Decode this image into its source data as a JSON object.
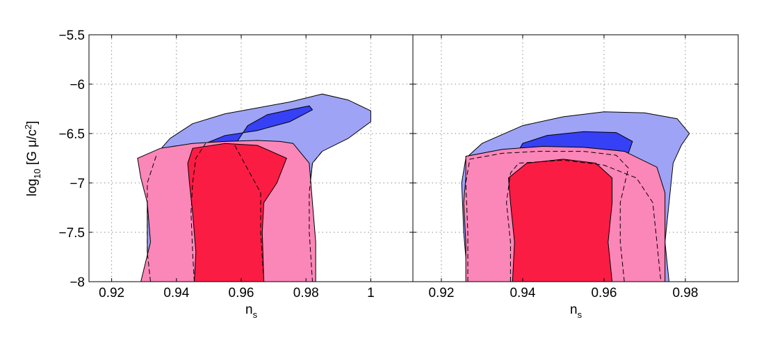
{
  "colors": {
    "blue_outer": "#9ea3f5",
    "blue_inner": "#3640f5",
    "pink_outer": "#fb86b8",
    "red_inner": "#fb1c44",
    "grid": "#8a8a8a"
  },
  "chart_data": [
    {
      "type": "contour",
      "panel": "left",
      "xlabel": "n_s",
      "ylabel": "log10[G μ/c²]",
      "xlim": [
        0.913,
        1.013
      ],
      "ylim": [
        -8,
        -5.5
      ],
      "xticks": [
        0.92,
        0.94,
        0.96,
        0.98,
        1
      ],
      "x_tick_labels": [
        "0.92",
        "0.94",
        "0.96",
        "0.98",
        "1"
      ],
      "yticks": [
        -8,
        -7.5,
        -7,
        -6.5,
        -6,
        -5.5
      ],
      "y_tick_labels": [
        "−8",
        "−7.5",
        "−7",
        "−6.5",
        "−6",
        "−5.5"
      ],
      "grid": true,
      "regions": [
        {
          "level": "outer",
          "color": "blue_outer",
          "points": [
            [
              0.932,
              -8
            ],
            [
              0.931,
              -7.7
            ],
            [
              0.931,
              -7.3
            ],
            [
              0.931,
              -7.0
            ],
            [
              0.934,
              -6.7
            ],
            [
              0.938,
              -6.55
            ],
            [
              0.945,
              -6.4
            ],
            [
              0.955,
              -6.3
            ],
            [
              0.965,
              -6.24
            ],
            [
              0.975,
              -6.18
            ],
            [
              0.985,
              -6.1
            ],
            [
              0.993,
              -6.16
            ],
            [
              1.0,
              -6.27
            ],
            [
              1.0,
              -6.38
            ],
            [
              0.993,
              -6.55
            ],
            [
              0.985,
              -6.68
            ],
            [
              0.982,
              -6.8
            ],
            [
              0.981,
              -7.1
            ],
            [
              0.981,
              -7.5
            ],
            [
              0.982,
              -8
            ]
          ]
        },
        {
          "level": "inner",
          "color": "blue_inner",
          "points": [
            [
              0.9455,
              -8
            ],
            [
              0.945,
              -7.7
            ],
            [
              0.9445,
              -7.3
            ],
            [
              0.945,
              -7.0
            ],
            [
              0.946,
              -6.75
            ],
            [
              0.949,
              -6.6
            ],
            [
              0.955,
              -6.52
            ],
            [
              0.965,
              -6.47
            ],
            [
              0.975,
              -6.38
            ],
            [
              0.982,
              -6.26
            ],
            [
              0.981,
              -6.22
            ],
            [
              0.975,
              -6.26
            ],
            [
              0.968,
              -6.31
            ],
            [
              0.962,
              -6.42
            ],
            [
              0.958,
              -6.62
            ],
            [
              0.961,
              -6.8
            ],
            [
              0.966,
              -7.1
            ],
            [
              0.966,
              -7.5
            ],
            [
              0.967,
              -8
            ]
          ]
        },
        {
          "level": "outer",
          "color": "pink_outer",
          "points": [
            [
              0.929,
              -8
            ],
            [
              0.932,
              -7.6
            ],
            [
              0.931,
              -7.2
            ],
            [
              0.929,
              -6.95
            ],
            [
              0.928,
              -6.75
            ],
            [
              0.935,
              -6.65
            ],
            [
              0.945,
              -6.6
            ],
            [
              0.955,
              -6.58
            ],
            [
              0.965,
              -6.57
            ],
            [
              0.972,
              -6.58
            ],
            [
              0.976,
              -6.6
            ],
            [
              0.981,
              -6.8
            ],
            [
              0.982,
              -7.2
            ],
            [
              0.983,
              -7.6
            ],
            [
              0.983,
              -8
            ]
          ]
        },
        {
          "level": "inner",
          "color": "red_inner",
          "points": [
            [
              0.9455,
              -8
            ],
            [
              0.946,
              -7.7
            ],
            [
              0.945,
              -7.3
            ],
            [
              0.944,
              -7.0
            ],
            [
              0.9435,
              -6.8
            ],
            [
              0.945,
              -6.65
            ],
            [
              0.955,
              -6.6
            ],
            [
              0.965,
              -6.62
            ],
            [
              0.974,
              -6.75
            ],
            [
              0.971,
              -7.0
            ],
            [
              0.967,
              -7.2
            ],
            [
              0.9665,
              -7.5
            ],
            [
              0.967,
              -8
            ]
          ]
        }
      ]
    },
    {
      "type": "contour",
      "panel": "right",
      "xlabel": "n_s",
      "xlim": [
        0.913,
        0.993
      ],
      "ylim": [
        -8,
        -5.5
      ],
      "xticks": [
        0.92,
        0.94,
        0.96,
        0.98
      ],
      "x_tick_labels": [
        "0.92",
        "0.94",
        "0.96",
        "0.98"
      ],
      "yticks": [
        -8,
        -7.5,
        -7,
        -6.5,
        -6,
        -5.5
      ],
      "grid": true,
      "regions": [
        {
          "level": "outer",
          "color": "blue_outer",
          "points": [
            [
              0.9265,
              -8
            ],
            [
              0.9255,
              -7.5
            ],
            [
              0.925,
              -7.0
            ],
            [
              0.926,
              -6.75
            ],
            [
              0.93,
              -6.6
            ],
            [
              0.94,
              -6.42
            ],
            [
              0.95,
              -6.33
            ],
            [
              0.96,
              -6.28
            ],
            [
              0.97,
              -6.29
            ],
            [
              0.978,
              -6.35
            ],
            [
              0.981,
              -6.5
            ],
            [
              0.979,
              -6.62
            ],
            [
              0.977,
              -6.8
            ],
            [
              0.976,
              -7.2
            ],
            [
              0.975,
              -7.6
            ],
            [
              0.976,
              -8
            ]
          ]
        },
        {
          "level": "inner",
          "color": "blue_inner",
          "points": [
            [
              0.9375,
              -8
            ],
            [
              0.937,
              -7.5
            ],
            [
              0.9365,
              -7.0
            ],
            [
              0.938,
              -6.75
            ],
            [
              0.94,
              -6.6
            ],
            [
              0.946,
              -6.52
            ],
            [
              0.955,
              -6.48
            ],
            [
              0.963,
              -6.49
            ],
            [
              0.967,
              -6.58
            ],
            [
              0.966,
              -6.7
            ],
            [
              0.964,
              -6.9
            ],
            [
              0.962,
              -7.2
            ],
            [
              0.962,
              -7.6
            ],
            [
              0.963,
              -8
            ]
          ]
        },
        {
          "level": "outer",
          "color": "pink_outer",
          "points": [
            [
              0.926,
              -8
            ],
            [
              0.926,
              -7.6
            ],
            [
              0.9255,
              -7.2
            ],
            [
              0.926,
              -6.95
            ],
            [
              0.926,
              -6.73
            ],
            [
              0.935,
              -6.66
            ],
            [
              0.945,
              -6.63
            ],
            [
              0.955,
              -6.64
            ],
            [
              0.965,
              -6.68
            ],
            [
              0.973,
              -6.84
            ],
            [
              0.975,
              -7.1
            ],
            [
              0.975,
              -7.6
            ],
            [
              0.975,
              -8
            ]
          ]
        },
        {
          "level": "inner",
          "color": "red_inner",
          "points": [
            [
              0.9375,
              -8
            ],
            [
              0.938,
              -7.6
            ],
            [
              0.937,
              -7.2
            ],
            [
              0.9365,
              -6.95
            ],
            [
              0.941,
              -6.8
            ],
            [
              0.95,
              -6.76
            ],
            [
              0.958,
              -6.8
            ],
            [
              0.962,
              -6.95
            ],
            [
              0.962,
              -7.2
            ],
            [
              0.961,
              -7.6
            ],
            [
              0.962,
              -8
            ]
          ]
        }
      ],
      "dashed_contours": [
        [
          [
            0.9265,
            -8
          ],
          [
            0.9265,
            -7.5
          ],
          [
            0.926,
            -7.0
          ],
          [
            0.927,
            -6.76
          ],
          [
            0.935,
            -6.7
          ],
          [
            0.944,
            -6.68
          ],
          [
            0.955,
            -6.68
          ],
          [
            0.963,
            -6.72
          ],
          [
            0.966,
            -6.85
          ],
          [
            0.964,
            -7.2
          ],
          [
            0.964,
            -7.6
          ],
          [
            0.965,
            -8
          ]
        ],
        [
          [
            0.937,
            -8
          ],
          [
            0.937,
            -7.6
          ],
          [
            0.936,
            -7.2
          ],
          [
            0.937,
            -6.9
          ],
          [
            0.939,
            -6.8
          ],
          [
            0.95,
            -6.77
          ],
          [
            0.96,
            -6.82
          ],
          [
            0.968,
            -6.95
          ],
          [
            0.972,
            -7.2
          ],
          [
            0.973,
            -7.6
          ],
          [
            0.974,
            -8
          ]
        ]
      ]
    }
  ]
}
